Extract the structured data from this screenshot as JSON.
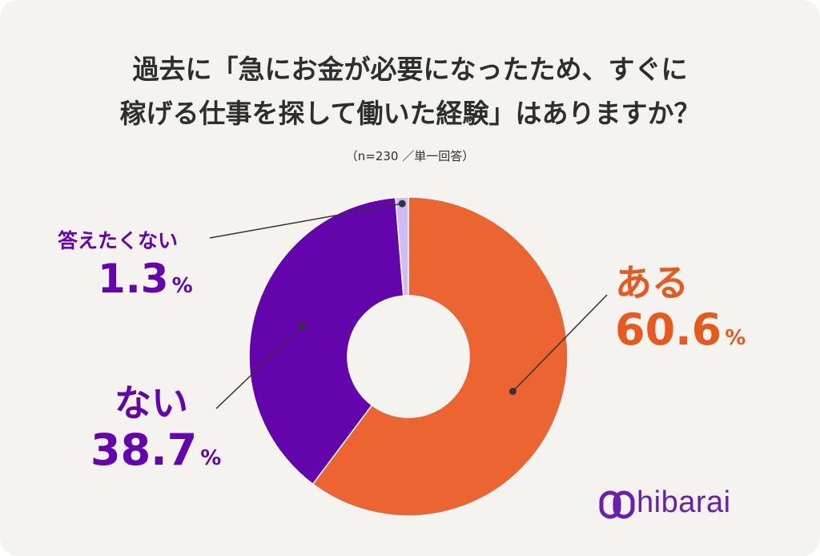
{
  "title_line1": "過去に「急にお金が必要になったため、すぐに",
  "title_line2": "稼げる仕事を探して働いた経験」はありますか？",
  "subtitle": "（n=230 ／単一回答）",
  "brand": "hibarai",
  "colors": {
    "aru": "#ec6431",
    "nai": "#6404ad",
    "kotaetakunai": "#cdbcf6",
    "label_purple": "#6404ad",
    "label_orange": "#e65a1f",
    "background": "#f5f3f0"
  },
  "chart_data": {
    "type": "pie",
    "donut": true,
    "categories": [
      "ある",
      "ない",
      "答えたくない"
    ],
    "values": [
      60.6,
      38.7,
      1.3
    ],
    "value_labels": [
      "60.6",
      "38.7",
      "1.3"
    ],
    "unit": "%"
  }
}
